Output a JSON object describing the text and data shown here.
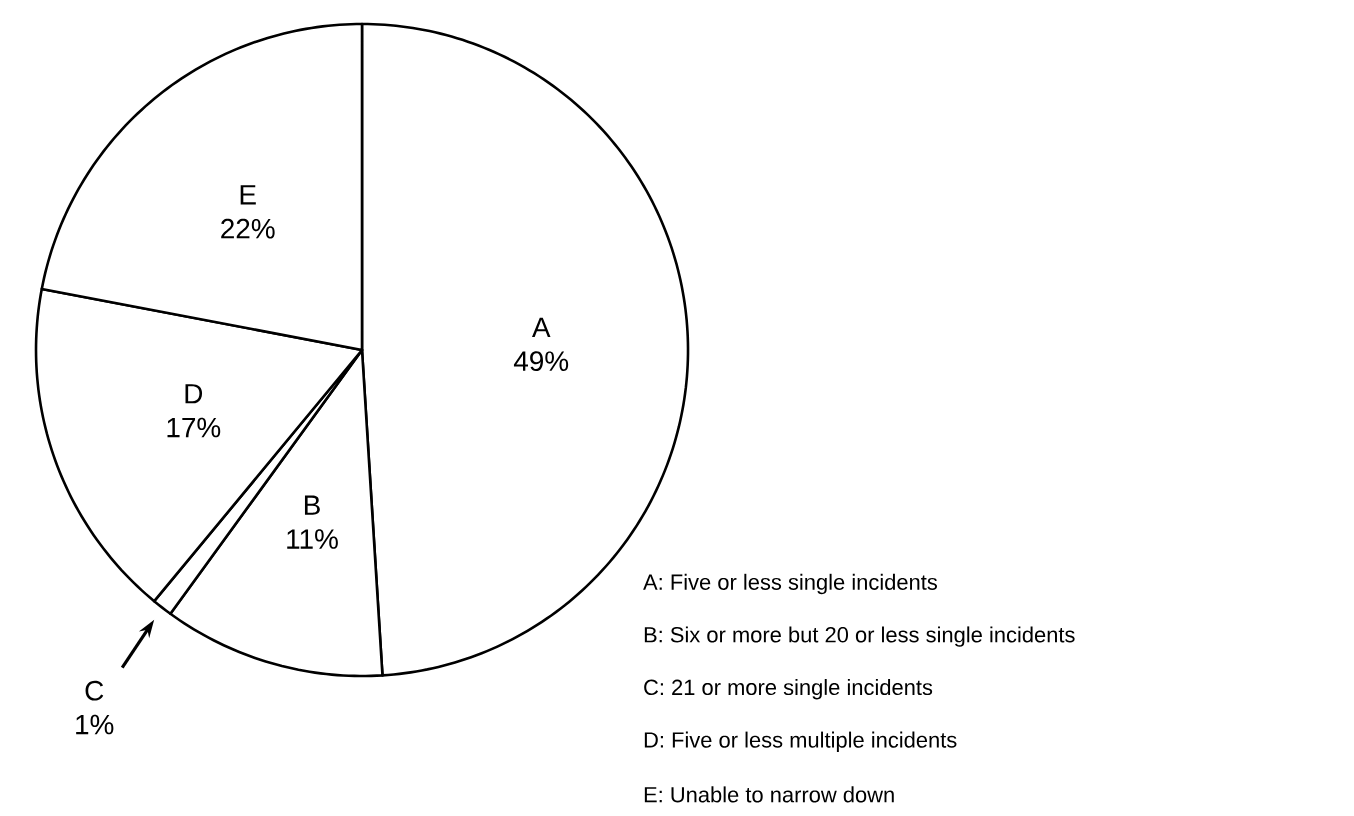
{
  "chart_data": {
    "type": "pie",
    "categories": [
      "A",
      "B",
      "C",
      "D",
      "E"
    ],
    "values": [
      49,
      11,
      1,
      17,
      22
    ],
    "colors": [
      "#ffffff",
      "#ffffff",
      "#ffffff",
      "#ffffff",
      "#ffffff"
    ],
    "value_labels": [
      "49%",
      "11%",
      "1%",
      "17%",
      "22%"
    ],
    "annotations": [
      "A: Five or less single incidents",
      "B: Six or more but 20 or less single incidents",
      "C: 21 or more single incidents",
      "D: Five or less multiple incidents",
      "E: Unable to narrow down"
    ]
  }
}
